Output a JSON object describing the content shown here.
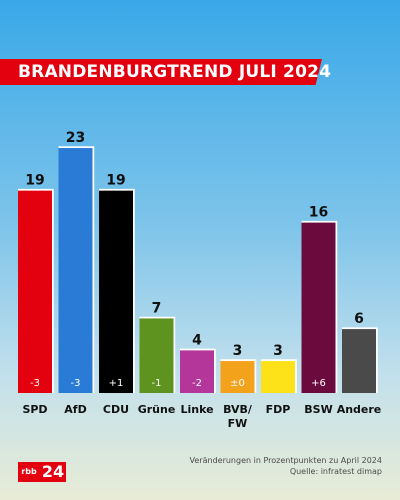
{
  "header": {
    "title": "BRANDENBURGTREND JULI 2024"
  },
  "chart_data": {
    "type": "bar",
    "title": "BRANDENBURGTREND JULI 2024",
    "categories": [
      "SPD",
      "AfD",
      "CDU",
      "Grüne",
      "Linke",
      "BVB/\nFW",
      "FDP",
      "BSW",
      "Andere"
    ],
    "values": [
      19,
      23,
      19,
      7,
      4,
      3,
      3,
      16,
      6
    ],
    "value_labels": [
      "19",
      "23",
      "19",
      "7",
      "4",
      "3",
      "3",
      "16",
      "6"
    ],
    "changes": [
      "-3",
      "-3",
      "+1",
      "-1",
      "-2",
      "±0",
      "",
      "+6",
      ""
    ],
    "colors": [
      "#e3000f",
      "#2a7bd6",
      "#000000",
      "#5f9320",
      "#b5369a",
      "#f3a21b",
      "#fde21a",
      "#6a0a3d",
      "#4a4a4a"
    ],
    "change_colors": [
      "#ffffff",
      "#ffffff",
      "#ffffff",
      "#ffffff",
      "#ffffff",
      "#ffffff",
      "#000000",
      "#ffffff",
      "#ffffff"
    ],
    "ylim": [
      0,
      23
    ],
    "grid": false,
    "legend": "none"
  },
  "footer": {
    "note": "Veränderungen in Prozentpunkten zu April 2024",
    "source": "Quelle: infratest dimap",
    "logo_text": "rbb",
    "logo_number": "24"
  }
}
